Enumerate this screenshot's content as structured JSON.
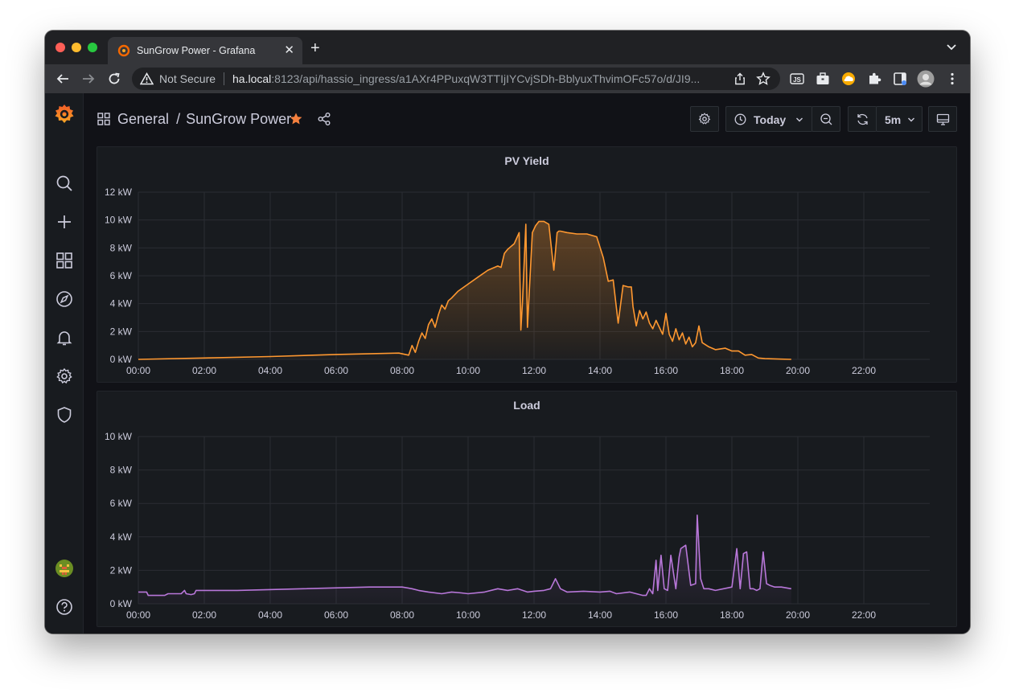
{
  "browser": {
    "tab_title": "SunGrow Power - Grafana",
    "security_label": "Not Secure",
    "url_host": "ha.local",
    "url_rest": ":8123/api/hassio_ingress/a1AXr4PPuxqW3TTIjIYCvjSDh-BblyuxThvimOFc57o/d/JI9..."
  },
  "header": {
    "folder": "General",
    "separator": "/",
    "dashboard": "SunGrow Power",
    "time_range": "Today",
    "refresh": "5m"
  },
  "colors": {
    "pv": "#ff9830",
    "load": "#b877d9",
    "accent": "#f5803e"
  },
  "chart_data": [
    {
      "type": "area",
      "title": "PV Yield",
      "xlabel": "",
      "ylabel": "",
      "x_ticks": [
        "00:00",
        "02:00",
        "04:00",
        "06:00",
        "08:00",
        "10:00",
        "12:00",
        "14:00",
        "16:00",
        "18:00",
        "20:00",
        "22:00"
      ],
      "y_ticks": [
        "0 kW",
        "2 kW",
        "4 kW",
        "6 kW",
        "8 kW",
        "10 kW",
        "12 kW"
      ],
      "xlim": [
        0,
        24
      ],
      "ylim": [
        0,
        12
      ],
      "series": [
        {
          "name": "PV",
          "color": "#ff9830",
          "x": [
            0,
            2,
            4,
            6,
            7.9,
            8.2,
            8.3,
            8.4,
            8.5,
            8.6,
            8.7,
            8.8,
            8.9,
            9.0,
            9.1,
            9.2,
            9.3,
            9.4,
            9.5,
            9.7,
            10.0,
            10.3,
            10.6,
            10.9,
            11.0,
            11.1,
            11.2,
            11.4,
            11.55,
            11.6,
            11.65,
            11.75,
            11.8,
            11.95,
            12.05,
            12.15,
            12.3,
            12.45,
            12.6,
            12.7,
            12.75,
            12.8,
            13.0,
            13.3,
            13.6,
            13.9,
            14.1,
            14.25,
            14.4,
            14.55,
            14.7,
            14.85,
            14.95,
            15.0,
            15.1,
            15.2,
            15.3,
            15.4,
            15.5,
            15.6,
            15.7,
            15.8,
            15.9,
            16.0,
            16.1,
            16.2,
            16.3,
            16.4,
            16.5,
            16.6,
            16.7,
            16.8,
            16.9,
            17.0,
            17.1,
            17.3,
            17.5,
            17.8,
            18.0,
            18.2,
            18.4,
            18.6,
            18.8,
            19.0,
            19.5,
            19.8
          ],
          "values": [
            0,
            0.1,
            0.2,
            0.35,
            0.45,
            0.3,
            1.0,
            0.5,
            1.3,
            1.9,
            1.5,
            2.5,
            2.9,
            2.3,
            3.2,
            3.9,
            3.6,
            4.2,
            4.4,
            4.9,
            5.4,
            5.9,
            6.4,
            6.7,
            6.6,
            7.6,
            7.9,
            8.3,
            9.1,
            2.1,
            4.1,
            9.7,
            2.3,
            9.1,
            9.6,
            9.9,
            9.9,
            9.7,
            6.4,
            9.1,
            9.2,
            9.2,
            9.1,
            9.0,
            9.0,
            8.8,
            7.3,
            5.6,
            5.7,
            2.6,
            5.3,
            5.2,
            5.2,
            3.8,
            2.4,
            3.5,
            2.9,
            3.4,
            2.6,
            2.2,
            2.8,
            2.3,
            1.8,
            3.3,
            1.8,
            1.3,
            2.2,
            1.4,
            1.9,
            1.1,
            1.6,
            0.9,
            1.2,
            2.4,
            1.2,
            0.9,
            0.7,
            0.8,
            0.6,
            0.6,
            0.3,
            0.35,
            0.1,
            0.05,
            0.02,
            0
          ]
        }
      ]
    },
    {
      "type": "area",
      "title": "Load",
      "xlabel": "",
      "ylabel": "",
      "x_ticks": [
        "00:00",
        "02:00",
        "04:00",
        "06:00",
        "08:00",
        "10:00",
        "12:00",
        "14:00",
        "16:00",
        "18:00",
        "20:00",
        "22:00"
      ],
      "y_ticks": [
        "0 kW",
        "2 kW",
        "4 kW",
        "6 kW",
        "8 kW",
        "10 kW"
      ],
      "xlim": [
        0,
        24
      ],
      "ylim": [
        0,
        10
      ],
      "series": [
        {
          "name": "Load",
          "color": "#b877d9",
          "x": [
            0,
            0.25,
            0.3,
            0.5,
            0.8,
            0.9,
            1.3,
            1.4,
            1.45,
            1.6,
            1.7,
            1.75,
            3,
            5,
            7,
            8.0,
            8.3,
            8.5,
            8.8,
            9.2,
            9.5,
            9.8,
            10.0,
            10.5,
            10.9,
            11.2,
            11.5,
            11.8,
            12.0,
            12.3,
            12.5,
            12.6,
            12.65,
            12.8,
            13.0,
            13.5,
            14.0,
            14.3,
            14.5,
            14.9,
            15.1,
            15.3,
            15.4,
            15.5,
            15.6,
            15.7,
            15.75,
            15.85,
            15.95,
            16.05,
            16.15,
            16.3,
            16.4,
            16.45,
            16.6,
            16.75,
            16.9,
            16.95,
            17.05,
            17.15,
            17.3,
            17.5,
            18.0,
            18.15,
            18.25,
            18.35,
            18.45,
            18.55,
            18.65,
            18.75,
            18.85,
            18.95,
            19.05,
            19.15,
            19.3,
            19.5,
            19.8
          ],
          "values": [
            0.7,
            0.7,
            0.5,
            0.5,
            0.5,
            0.6,
            0.6,
            0.8,
            0.6,
            0.55,
            0.6,
            0.8,
            0.8,
            0.9,
            1.0,
            1.0,
            0.9,
            0.8,
            0.7,
            0.6,
            0.7,
            0.65,
            0.6,
            0.7,
            0.9,
            0.8,
            0.9,
            0.7,
            0.75,
            0.8,
            0.9,
            1.3,
            1.5,
            0.9,
            0.7,
            0.75,
            0.7,
            0.75,
            0.6,
            0.7,
            0.6,
            0.5,
            0.5,
            0.9,
            0.6,
            2.6,
            0.8,
            2.9,
            0.9,
            0.8,
            2.9,
            0.9,
            2.8,
            3.3,
            3.5,
            1.1,
            1.2,
            5.3,
            1.5,
            0.9,
            0.9,
            0.8,
            1.0,
            3.3,
            0.9,
            3.0,
            3.1,
            0.9,
            0.9,
            0.8,
            0.9,
            3.1,
            1.2,
            1.1,
            1.0,
            1.0,
            0.9
          ]
        }
      ]
    }
  ]
}
